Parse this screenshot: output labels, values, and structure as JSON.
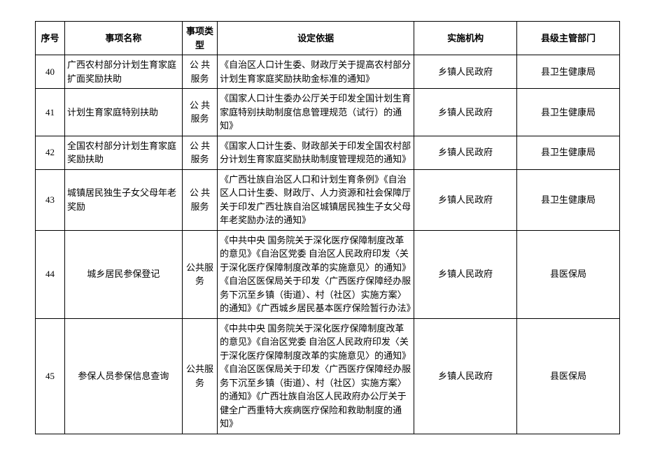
{
  "table": {
    "columns": [
      "序号",
      "事项名称",
      "事项类型",
      "设定依据",
      "实施机构",
      "县级主管部门"
    ],
    "rows": [
      {
        "seq": "40",
        "name": "广西农村部分计划生育家庭扩面奖励扶助",
        "name_align": "left",
        "type": "公 共 服务",
        "basis": "《自治区人口计生委、财政厅关于提高农村部分计划生育家庭奖励扶助金标准的通知》",
        "agency": "乡镇人民政府",
        "dept": "县卫生健康局"
      },
      {
        "seq": "41",
        "name": "计划生育家庭特别扶助",
        "name_align": "left",
        "type": "公 共 服务",
        "basis": "《国家人口计生委办公厅关于印发全国计划生育家庭特别扶助制度信息管理规范（试行）的通知》",
        "agency": "乡镇人民政府",
        "dept": "县卫生健康局"
      },
      {
        "seq": "42",
        "name": "全国农村部分计划生育家庭奖励扶助",
        "name_align": "left",
        "type": "公 共 服务",
        "basis": "《国家人口计生委、财政部关于印发全国农村部分计划生育家庭奖励扶助制度管理规范的通知》",
        "agency": "乡镇人民政府",
        "dept": "县卫生健康局"
      },
      {
        "seq": "43",
        "name": "城镇居民独生子女父母年老奖励",
        "name_align": "left",
        "type": "公 共 服务",
        "basis": "《广西壮族自治区人口和计划生育条例》《自治区人口计生委、财政厅、人力资源和社会保障厅关于印发广西壮族自治区城镇居民独生子女父母年老奖励办法的通知》",
        "agency": "乡镇人民政府",
        "dept": "县卫生健康局"
      },
      {
        "seq": "44",
        "name": "城乡居民参保登记",
        "name_align": "center",
        "type": "公共服务",
        "basis": "《中共中央  国务院关于深化医疗保障制度改革的意见》《自治区党委 自治区人民政府印发〈关于深化医疗保障制度改革的实施意见〉的通知》\n《自治区医保局关于印发〈广西医疗保障经办服务下沉至乡镇（街道）、村（社区）实施方案〉的通知》《广西城乡居民基本医疗保险暂行办法》",
        "agency": "乡镇人民政府",
        "dept": "县医保局"
      },
      {
        "seq": "45",
        "name": "参保人员参保信息查询",
        "name_align": "center",
        "type": "公共服务",
        "basis": "《中共中央  国务院关于深化医疗保障制度改革的意见》《自治区党委 自治区人民政府印发〈关于深化医疗保障制度改革的实施意见〉的通知》《自治区医保局关于印发〈广西医疗保障经办服务下沉至乡镇（街道）、村（社区）实施方案〉的通知》《广西壮族自治区人民政府办公厅关于健全广西重特大疾病医疗保险和救助制度的通知》",
        "agency": "乡镇人民政府",
        "dept": "县医保局"
      }
    ]
  }
}
